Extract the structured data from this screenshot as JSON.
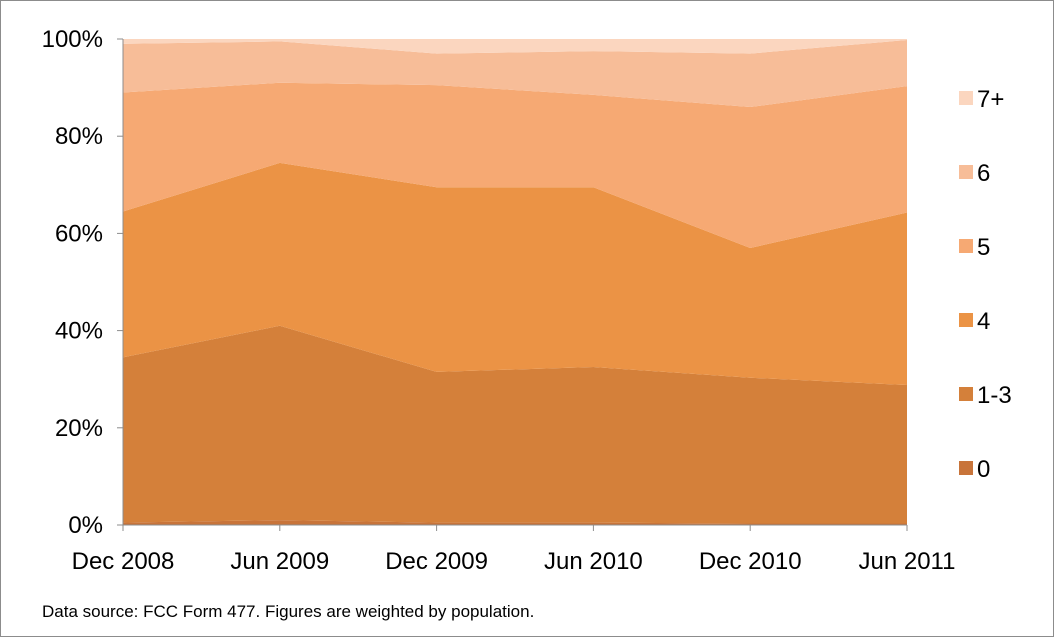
{
  "chart_data": {
    "type": "area",
    "stacked": true,
    "percent": true,
    "categories": [
      "Dec 2008",
      "Jun 2009",
      "Dec 2009",
      "Jun 2010",
      "Dec 2010",
      "Jun 2011"
    ],
    "y_ticks": [
      "0%",
      "20%",
      "40%",
      "60%",
      "80%",
      "100%"
    ],
    "ylim": [
      0,
      100
    ],
    "grid": false,
    "legend_position": "right",
    "series": [
      {
        "name": "0",
        "color": "#C8743A",
        "values": [
          0.5,
          1,
          0.5,
          0.5,
          0.3,
          0.3
        ]
      },
      {
        "name": "1-3",
        "color": "#D4803A",
        "values": [
          34,
          40,
          31,
          32,
          30,
          28.5
        ]
      },
      {
        "name": "4",
        "color": "#EB9345",
        "values": [
          30,
          33.5,
          38,
          37,
          26.7,
          35.5
        ]
      },
      {
        "name": "5",
        "color": "#F6A973",
        "values": [
          24.5,
          16.5,
          21,
          19,
          29,
          26
        ]
      },
      {
        "name": "6",
        "color": "#F7BD98",
        "values": [
          10,
          8.5,
          6.5,
          9,
          11,
          9.5
        ]
      },
      {
        "name": "7+",
        "color": "#FBD6BF",
        "values": [
          1,
          0.5,
          3,
          2.5,
          3,
          0.2
        ]
      }
    ]
  },
  "footnote": "Data source:  FCC Form 477.  Figures are weighted by population."
}
